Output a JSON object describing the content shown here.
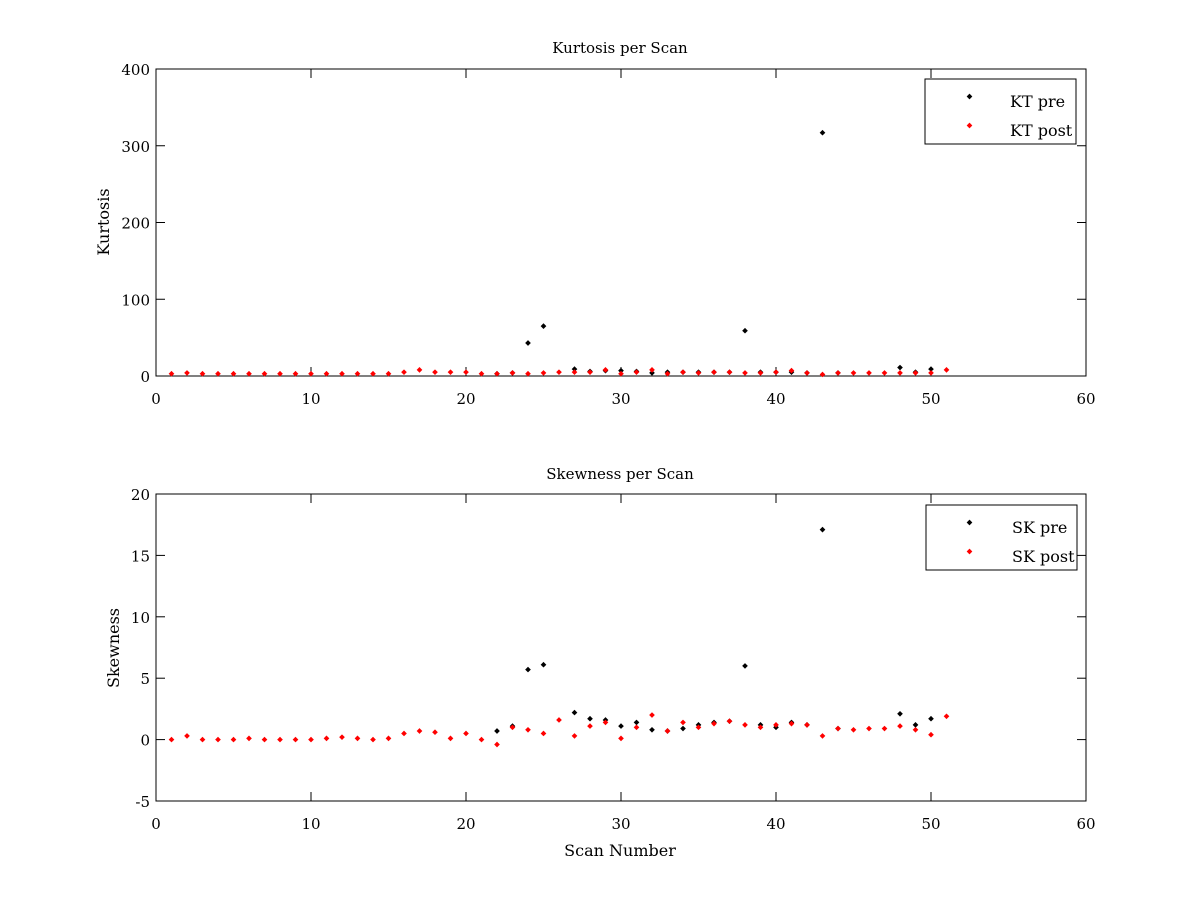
{
  "chart_data": [
    {
      "type": "scatter",
      "title": "Kurtosis per Scan",
      "xlabel": "",
      "ylabel": "Kurtosis",
      "xlim": [
        0,
        60
      ],
      "ylim": [
        0,
        400
      ],
      "xticks": [
        0,
        10,
        20,
        30,
        40,
        50,
        60
      ],
      "yticks": [
        0,
        100,
        200,
        300,
        400
      ],
      "grid": false,
      "legend_position": "top-right",
      "series": [
        {
          "name": "KT pre",
          "color": "#000000",
          "points": [
            [
              22,
              3
            ],
            [
              23,
              4
            ],
            [
              24,
              43
            ],
            [
              25,
              65
            ],
            [
              27,
              9
            ],
            [
              28,
              6
            ],
            [
              29,
              7
            ],
            [
              30,
              7
            ],
            [
              31,
              6
            ],
            [
              32,
              4
            ],
            [
              33,
              5
            ],
            [
              34,
              5
            ],
            [
              35,
              5
            ],
            [
              36,
              5
            ],
            [
              37,
              5
            ],
            [
              38,
              59
            ],
            [
              39,
              5
            ],
            [
              40,
              5
            ],
            [
              41,
              5
            ],
            [
              42,
              4
            ],
            [
              43,
              317
            ],
            [
              44,
              4
            ],
            [
              48,
              11
            ],
            [
              49,
              5
            ],
            [
              50,
              9
            ]
          ]
        },
        {
          "name": "KT post",
          "color": "#ff0000",
          "points": [
            [
              1,
              3
            ],
            [
              2,
              4
            ],
            [
              3,
              3
            ],
            [
              4,
              3
            ],
            [
              5,
              3
            ],
            [
              6,
              3
            ],
            [
              7,
              3
            ],
            [
              8,
              3
            ],
            [
              9,
              3
            ],
            [
              10,
              3
            ],
            [
              11,
              3
            ],
            [
              12,
              3
            ],
            [
              13,
              3
            ],
            [
              14,
              3
            ],
            [
              15,
              3
            ],
            [
              16,
              5
            ],
            [
              17,
              8
            ],
            [
              18,
              5
            ],
            [
              19,
              5
            ],
            [
              20,
              5
            ],
            [
              21,
              3
            ],
            [
              22,
              3
            ],
            [
              23,
              4
            ],
            [
              24,
              3
            ],
            [
              25,
              4
            ],
            [
              26,
              5
            ],
            [
              27,
              5
            ],
            [
              28,
              5
            ],
            [
              29,
              8
            ],
            [
              30,
              3
            ],
            [
              31,
              5
            ],
            [
              32,
              8
            ],
            [
              33,
              3
            ],
            [
              34,
              5
            ],
            [
              35,
              4
            ],
            [
              36,
              5
            ],
            [
              37,
              5
            ],
            [
              38,
              4
            ],
            [
              39,
              4
            ],
            [
              40,
              5
            ],
            [
              41,
              7
            ],
            [
              42,
              4
            ],
            [
              43,
              2
            ],
            [
              44,
              4
            ],
            [
              45,
              4
            ],
            [
              46,
              4
            ],
            [
              47,
              4
            ],
            [
              48,
              4
            ],
            [
              49,
              4
            ],
            [
              50,
              4
            ],
            [
              51,
              8
            ]
          ]
        }
      ]
    },
    {
      "type": "scatter",
      "title": "Skewness per Scan",
      "xlabel": "Scan Number",
      "ylabel": "Skewness",
      "xlim": [
        0,
        60
      ],
      "ylim": [
        -5,
        20
      ],
      "xticks": [
        0,
        10,
        20,
        30,
        40,
        50,
        60
      ],
      "yticks": [
        -5,
        0,
        5,
        10,
        15,
        20
      ],
      "grid": false,
      "legend_position": "top-right",
      "series": [
        {
          "name": "SK pre",
          "color": "#000000",
          "points": [
            [
              22,
              0.7
            ],
            [
              23,
              1.1
            ],
            [
              24,
              5.7
            ],
            [
              25,
              6.1
            ],
            [
              27,
              2.2
            ],
            [
              28,
              1.7
            ],
            [
              29,
              1.6
            ],
            [
              30,
              1.1
            ],
            [
              31,
              1.4
            ],
            [
              32,
              0.8
            ],
            [
              33,
              0.7
            ],
            [
              34,
              0.9
            ],
            [
              35,
              1.2
            ],
            [
              36,
              1.4
            ],
            [
              37,
              1.5
            ],
            [
              38,
              6.0
            ],
            [
              39,
              1.2
            ],
            [
              40,
              1.0
            ],
            [
              41,
              1.4
            ],
            [
              42,
              1.2
            ],
            [
              43,
              17.1
            ],
            [
              44,
              0.9
            ],
            [
              48,
              2.1
            ],
            [
              49,
              1.2
            ],
            [
              50,
              1.7
            ]
          ]
        },
        {
          "name": "SK post",
          "color": "#ff0000",
          "points": [
            [
              1,
              0.0
            ],
            [
              2,
              0.3
            ],
            [
              3,
              0.0
            ],
            [
              4,
              0.0
            ],
            [
              5,
              0.0
            ],
            [
              6,
              0.1
            ],
            [
              7,
              0.0
            ],
            [
              8,
              0.0
            ],
            [
              9,
              0.0
            ],
            [
              10,
              0.0
            ],
            [
              11,
              0.1
            ],
            [
              12,
              0.2
            ],
            [
              13,
              0.1
            ],
            [
              14,
              0.0
            ],
            [
              15,
              0.1
            ],
            [
              16,
              0.5
            ],
            [
              17,
              0.7
            ],
            [
              18,
              0.6
            ],
            [
              19,
              0.1
            ],
            [
              20,
              0.5
            ],
            [
              21,
              0.0
            ],
            [
              22,
              -0.4
            ],
            [
              23,
              1.0
            ],
            [
              24,
              0.8
            ],
            [
              25,
              0.5
            ],
            [
              26,
              1.6
            ],
            [
              27,
              0.3
            ],
            [
              28,
              1.1
            ],
            [
              29,
              1.4
            ],
            [
              30,
              0.1
            ],
            [
              31,
              1.0
            ],
            [
              32,
              2.0
            ],
            [
              33,
              0.7
            ],
            [
              34,
              1.4
            ],
            [
              35,
              1.0
            ],
            [
              36,
              1.3
            ],
            [
              37,
              1.5
            ],
            [
              38,
              1.2
            ],
            [
              39,
              1.0
            ],
            [
              40,
              1.2
            ],
            [
              41,
              1.3
            ],
            [
              42,
              1.2
            ],
            [
              43,
              0.3
            ],
            [
              44,
              0.9
            ],
            [
              45,
              0.8
            ],
            [
              46,
              0.9
            ],
            [
              47,
              0.9
            ],
            [
              48,
              1.1
            ],
            [
              49,
              0.8
            ],
            [
              50,
              0.4
            ],
            [
              51,
              1.9
            ]
          ]
        }
      ]
    }
  ]
}
